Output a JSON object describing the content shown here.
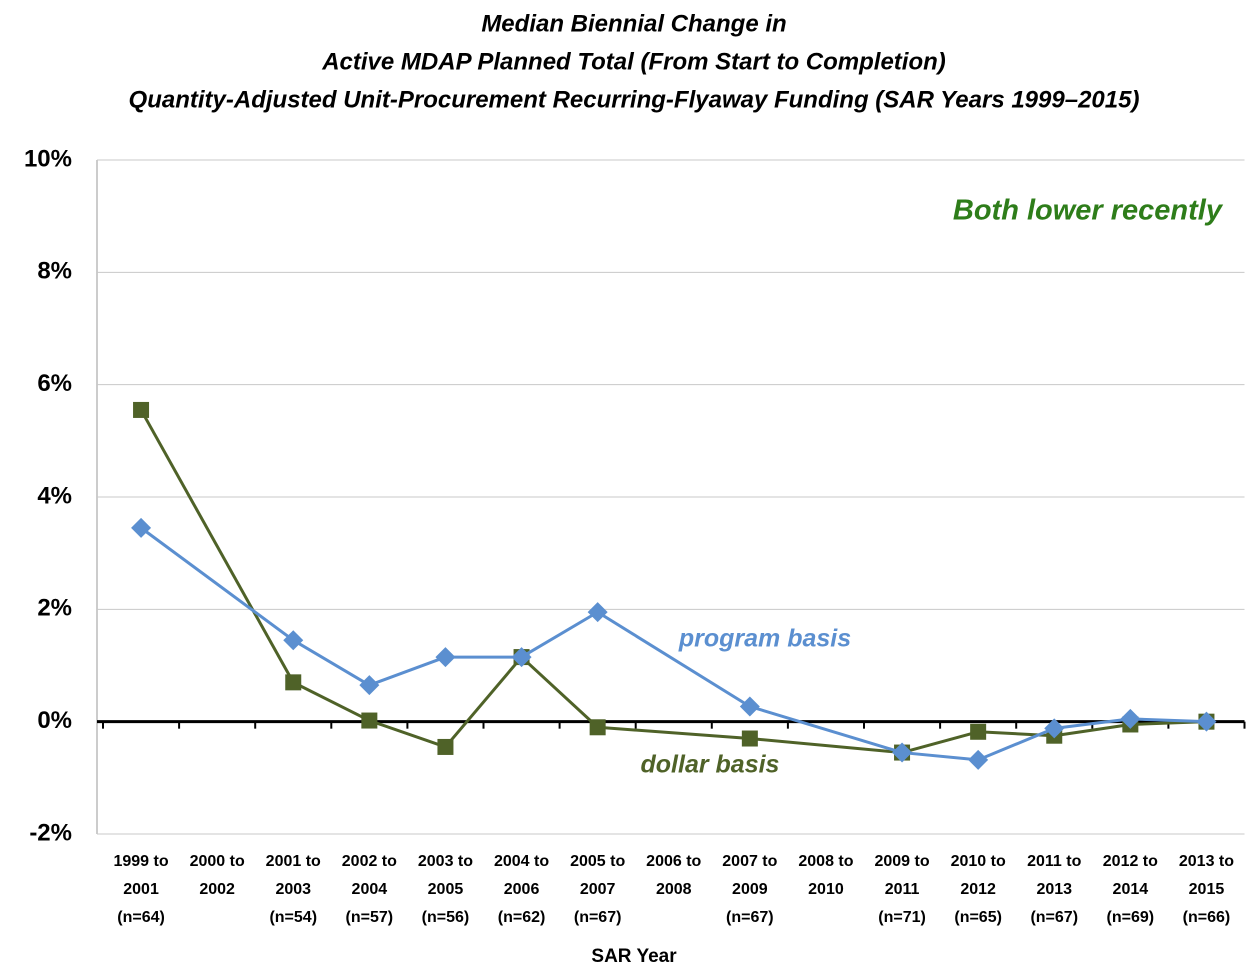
{
  "chart_data": {
    "type": "line",
    "title": [
      "Median Biennial Change in",
      "Active MDAP Planned Total (From Start to Completion)",
      "Quantity-Adjusted Unit-Procurement Recurring-Flyaway Funding (SAR Years 1999–2015)"
    ],
    "x_label": "SAR Year",
    "categories": [
      [
        "1999 to",
        "2001",
        "(n=64)"
      ],
      [
        "2000 to",
        "2002"
      ],
      [
        "2001 to",
        "2003",
        "(n=54)"
      ],
      [
        "2002 to",
        "2004",
        "(n=57)"
      ],
      [
        "2003 to",
        "2005",
        "(n=56)"
      ],
      [
        "2004 to",
        "2006",
        "(n=62)"
      ],
      [
        "2005 to",
        "2007",
        "(n=67)"
      ],
      [
        "2006 to",
        "2008"
      ],
      [
        "2007 to",
        "2009",
        "(n=67)"
      ],
      [
        "2008 to",
        "2010"
      ],
      [
        "2009 to",
        "2011",
        "(n=71)"
      ],
      [
        "2010 to",
        "2012",
        "(n=65)"
      ],
      [
        "2011 to",
        "2013",
        "(n=67)"
      ],
      [
        "2012 to",
        "2014",
        "(n=69)"
      ],
      [
        "2013 to",
        "2015",
        "(n=66)"
      ]
    ],
    "series": [
      {
        "name": "program basis",
        "color": "#5b8fd0",
        "marker": "diamond",
        "values": [
          3.45,
          null,
          1.45,
          0.65,
          1.15,
          1.15,
          1.95,
          null,
          0.27,
          null,
          -0.55,
          -0.68,
          -0.12,
          0.05,
          0.0
        ]
      },
      {
        "name": "dollar basis",
        "color": "#4f6228",
        "marker": "square",
        "values": [
          5.55,
          null,
          0.7,
          0.02,
          -0.45,
          1.15,
          -0.1,
          null,
          -0.3,
          null,
          -0.55,
          -0.18,
          -0.25,
          -0.05,
          0.0
        ]
      }
    ],
    "annotation": "Both lower recently",
    "annotation_color": "#2e7d1a",
    "ylim": [
      -2,
      10
    ],
    "yticks": [
      {
        "value": -2,
        "label": "-2%"
      },
      {
        "value": 0,
        "label": "0%"
      },
      {
        "value": 2,
        "label": "2%"
      },
      {
        "value": 4,
        "label": "4%"
      },
      {
        "value": 6,
        "label": "6%"
      },
      {
        "value": 8,
        "label": "8%"
      },
      {
        "value": 10,
        "label": "10%"
      }
    ],
    "grid": true
  }
}
